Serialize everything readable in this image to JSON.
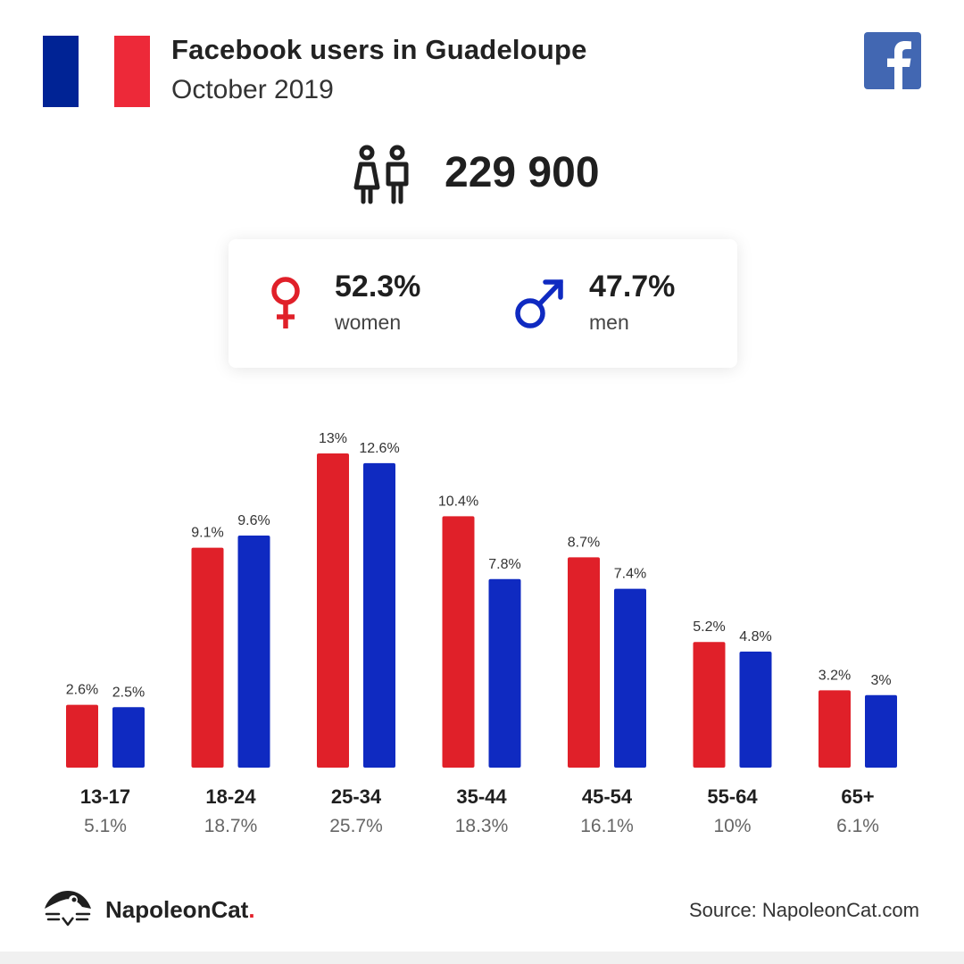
{
  "header": {
    "title": "Facebook users in Guadeloupe",
    "subtitle": "October 2019"
  },
  "flag_colors": [
    "#002395",
    "#ffffff",
    "#ed2939"
  ],
  "facebook_icon": "facebook-logo-icon",
  "facebook_color": "#4267b2",
  "total": {
    "icon": "people-icon",
    "value": "229 900"
  },
  "gender": {
    "women": {
      "icon": "female-symbol-icon",
      "percent": "52.3%",
      "label": "women",
      "color": "#e02029"
    },
    "men": {
      "icon": "male-symbol-icon",
      "percent": "47.7%",
      "label": "men",
      "color": "#0f2ac1"
    }
  },
  "chart_data": {
    "type": "bar",
    "categories": [
      "13-17",
      "18-24",
      "25-34",
      "35-44",
      "45-54",
      "55-64",
      "65+"
    ],
    "category_totals": [
      "5.1%",
      "18.7%",
      "25.7%",
      "18.3%",
      "16.1%",
      "10%",
      "6.1%"
    ],
    "series": [
      {
        "values": [
          2.6,
          9.1,
          13,
          10.4,
          8.7,
          5.2,
          3.2
        ],
        "labels": [
          "2.6%",
          "9.1%",
          "13%",
          "10.4%",
          "8.7%",
          "5.2%",
          "3.2%"
        ],
        "color": "#e02029"
      },
      {
        "values": [
          2.5,
          9.6,
          12.6,
          7.8,
          7.4,
          4.8,
          3
        ],
        "labels": [
          "2.5%",
          "9.6%",
          "12.6%",
          "7.8%",
          "7.4%",
          "4.8%",
          "3%"
        ],
        "color": "#0f2ac1"
      }
    ],
    "title": "",
    "xlabel": "",
    "ylabel": "",
    "grid": false
  },
  "footer": {
    "brand_name": "NapoleonCat",
    "brand_dot": ".",
    "brand_icon": "napoleoncat-logo-icon",
    "source": "Source: NapoleonCat.com"
  }
}
